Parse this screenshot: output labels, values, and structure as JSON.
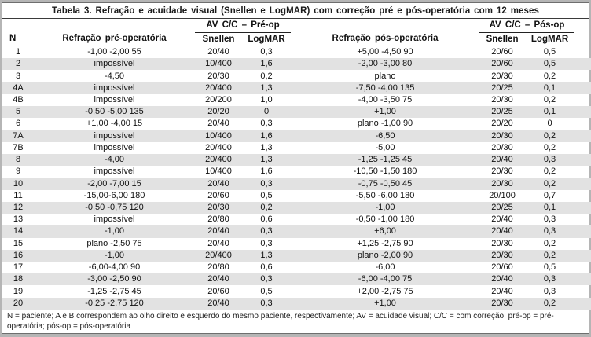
{
  "title": "Tabela 3. Refração e acuidade visual (Snellen e LogMAR) com correção pré e pós-operatória com 12 meses",
  "header": {
    "n": "N",
    "pre_refraction": "Refração pré-operatória",
    "pre_av_group": "AV C/C – Pré-op",
    "post_refraction": "Refração pós-operatória",
    "post_av_group": "AV C/C – Pós-op",
    "snellen": "Snellen",
    "logmar": "LogMAR"
  },
  "rows": [
    {
      "n": "1",
      "pre_ref": "-1,00 -2,00 55",
      "pre_snellen": "20/40",
      "pre_logmar": "0,3",
      "post_ref": "+5,00 -4,50 90",
      "post_snellen": "20/60",
      "post_logmar": "0,5"
    },
    {
      "n": "2",
      "pre_ref": "impossível",
      "pre_snellen": "10/400",
      "pre_logmar": "1,6",
      "post_ref": "-2,00 -3,00 80",
      "post_snellen": "20/60",
      "post_logmar": "0,5"
    },
    {
      "n": "3",
      "pre_ref": "-4,50",
      "pre_snellen": "20/30",
      "pre_logmar": "0,2",
      "post_ref": "plano",
      "post_snellen": "20/30",
      "post_logmar": "0,2"
    },
    {
      "n": "4A",
      "pre_ref": "impossível",
      "pre_snellen": "20/400",
      "pre_logmar": "1,3",
      "post_ref": "-7,50 -4,00 135",
      "post_snellen": "20/25",
      "post_logmar": "0,1"
    },
    {
      "n": "4B",
      "pre_ref": "impossível",
      "pre_snellen": "20/200",
      "pre_logmar": "1,0",
      "post_ref": "-4,00 -3,50 75",
      "post_snellen": "20/30",
      "post_logmar": "0,2"
    },
    {
      "n": "5",
      "pre_ref": "-0,50 -5,00 135",
      "pre_snellen": "20/20",
      "pre_logmar": "0",
      "post_ref": "+1,00",
      "post_snellen": "20/25",
      "post_logmar": "0,1"
    },
    {
      "n": "6",
      "pre_ref": "+1,00 -4,00 15",
      "pre_snellen": "20/40",
      "pre_logmar": "0,3",
      "post_ref": "plano -1,00 90",
      "post_snellen": "20/20",
      "post_logmar": "0"
    },
    {
      "n": "7A",
      "pre_ref": "impossível",
      "pre_snellen": "10/400",
      "pre_logmar": "1,6",
      "post_ref": "-6,50",
      "post_snellen": "20/30",
      "post_logmar": "0,2"
    },
    {
      "n": "7B",
      "pre_ref": "impossível",
      "pre_snellen": "20/400",
      "pre_logmar": "1,3",
      "post_ref": "-5,00",
      "post_snellen": "20/30",
      "post_logmar": "0,2"
    },
    {
      "n": "8",
      "pre_ref": "-4,00",
      "pre_snellen": "20/400",
      "pre_logmar": "1,3",
      "post_ref": "-1,25 -1,25 45",
      "post_snellen": "20/40",
      "post_logmar": "0,3"
    },
    {
      "n": "9",
      "pre_ref": "impossível",
      "pre_snellen": "10/400",
      "pre_logmar": "1,6",
      "post_ref": "-10,50 -1,50 180",
      "post_snellen": "20/30",
      "post_logmar": "0,2"
    },
    {
      "n": "10",
      "pre_ref": "-2,00 -7,00 15",
      "pre_snellen": "20/40",
      "pre_logmar": "0,3",
      "post_ref": "-0,75 -0,50 45",
      "post_snellen": "20/30",
      "post_logmar": "0,2"
    },
    {
      "n": "11",
      "pre_ref": "-15,00-6,00 180",
      "pre_snellen": "20/60",
      "pre_logmar": "0,5",
      "post_ref": "-5,50 -6,00 180",
      "post_snellen": "20/100",
      "post_logmar": "0,7"
    },
    {
      "n": "12",
      "pre_ref": "-0,50 -0,75 120",
      "pre_snellen": "20/30",
      "pre_logmar": "0,2",
      "post_ref": "-1,00",
      "post_snellen": "20/25",
      "post_logmar": "0,1"
    },
    {
      "n": "13",
      "pre_ref": "impossível",
      "pre_snellen": "20/80",
      "pre_logmar": "0,6",
      "post_ref": "-0,50 -1,00 180",
      "post_snellen": "20/40",
      "post_logmar": "0,3"
    },
    {
      "n": "14",
      "pre_ref": "-1,00",
      "pre_snellen": "20/40",
      "pre_logmar": "0,3",
      "post_ref": "+6,00",
      "post_snellen": "20/40",
      "post_logmar": "0,3"
    },
    {
      "n": "15",
      "pre_ref": "plano -2,50 75",
      "pre_snellen": "20/40",
      "pre_logmar": "0,3",
      "post_ref": "+1,25 -2,75 90",
      "post_snellen": "20/30",
      "post_logmar": "0,2"
    },
    {
      "n": "16",
      "pre_ref": "-1,00",
      "pre_snellen": "20/400",
      "pre_logmar": "1,3",
      "post_ref": "plano -2,00 90",
      "post_snellen": "20/30",
      "post_logmar": "0,2"
    },
    {
      "n": "17",
      "pre_ref": "-6,00-4,00 90",
      "pre_snellen": "20/80",
      "pre_logmar": "0,6",
      "post_ref": "-6,00",
      "post_snellen": "20/60",
      "post_logmar": "0,5"
    },
    {
      "n": "18",
      "pre_ref": "-3,00 -2,50 90",
      "pre_snellen": "20/40",
      "pre_logmar": "0,3",
      "post_ref": "-6,00 -4,00 75",
      "post_snellen": "20/40",
      "post_logmar": "0,3"
    },
    {
      "n": "19",
      "pre_ref": "-1,25 -2,75 45",
      "pre_snellen": "20/60",
      "pre_logmar": "0,5",
      "post_ref": "+2,00 -2,75 75",
      "post_snellen": "20/40",
      "post_logmar": "0,3"
    },
    {
      "n": "20",
      "pre_ref": "-0,25 -2,75 120",
      "pre_snellen": "20/40",
      "pre_logmar": "0,3",
      "post_ref": "+1,00",
      "post_snellen": "20/30",
      "post_logmar": "0,2"
    }
  ],
  "footnote": "N = paciente; A e B correspondem ao olho direito e esquerdo do mesmo paciente, respectivamente; AV = acuidade visual; C/C = com correção; pré-op = pré-operatória; pós-op = pós-operatória",
  "colors": {
    "stripe": "#e2e2e2",
    "border_dark": "#3a3a3a",
    "outer_bg": "#b5b5b5"
  }
}
